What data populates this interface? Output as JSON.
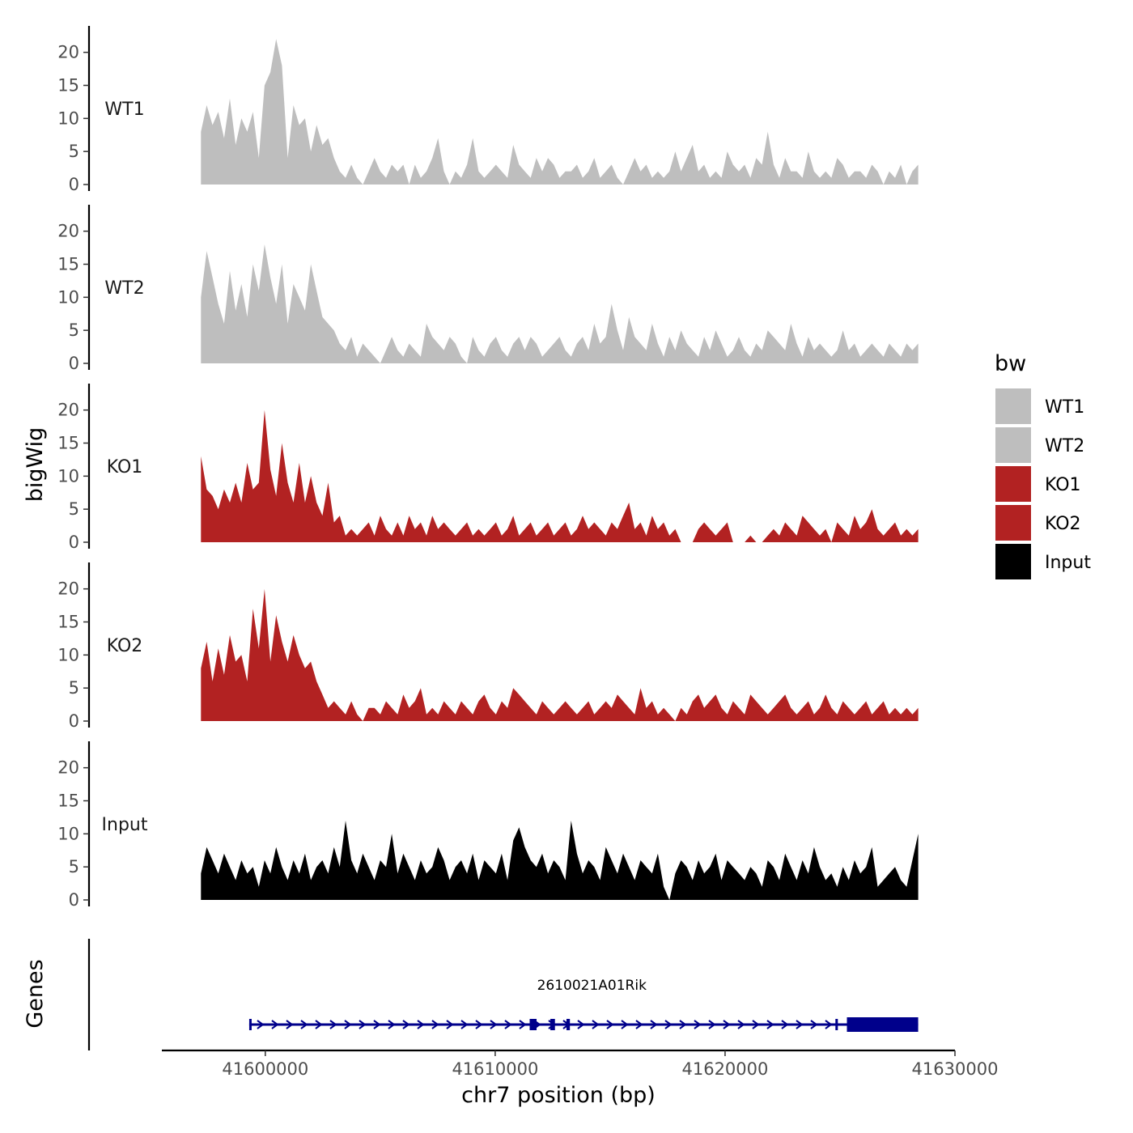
{
  "chart_data": {
    "type": "area",
    "xlabel": "chr7 position (bp)",
    "ylabel": "bigWig",
    "genes_label": "Genes",
    "xlim": [
      41595500,
      41630000
    ],
    "x_ticks": [
      41600000,
      41610000,
      41620000,
      41630000
    ],
    "x_tick_labels": [
      "41600000",
      "41610000",
      "41620000",
      "41630000"
    ],
    "ylim": [
      0,
      24
    ],
    "y_ticks": [
      0,
      5,
      10,
      15,
      20
    ],
    "y_tick_labels": [
      "0",
      "5",
      "10",
      "15",
      "20"
    ],
    "data_range": [
      41597200,
      41628400
    ],
    "legend": {
      "title": "bw",
      "entries": [
        {
          "label": "WT1",
          "color": "#bebebe"
        },
        {
          "label": "WT2",
          "color": "#bebebe"
        },
        {
          "label": "KO1",
          "color": "#b22222"
        },
        {
          "label": "KO2",
          "color": "#b22222"
        },
        {
          "label": "Input",
          "color": "#000000"
        }
      ]
    },
    "series": [
      {
        "name": "WT1",
        "color": "#bebebe",
        "values": [
          8,
          12,
          9,
          11,
          7,
          13,
          6,
          10,
          8,
          11,
          4,
          15,
          17,
          22,
          18,
          4,
          12,
          9,
          10,
          5,
          9,
          6,
          7,
          4,
          2,
          1,
          3,
          1,
          0,
          2,
          4,
          2,
          1,
          3,
          2,
          3,
          0,
          3,
          1,
          2,
          4,
          7,
          2,
          0,
          2,
          1,
          3,
          7,
          2,
          1,
          2,
          3,
          2,
          1,
          6,
          3,
          2,
          1,
          4,
          2,
          4,
          3,
          1,
          2,
          2,
          3,
          1,
          2,
          4,
          1,
          2,
          3,
          1,
          0,
          2,
          4,
          2,
          3,
          1,
          2,
          1,
          2,
          5,
          2,
          4,
          6,
          2,
          3,
          1,
          2,
          1,
          5,
          3,
          2,
          3,
          1,
          4,
          3,
          8,
          3,
          1,
          4,
          2,
          2,
          1,
          5,
          2,
          1,
          2,
          1,
          4,
          3,
          1,
          2,
          2,
          1,
          3,
          2,
          0,
          2,
          1,
          3,
          0,
          2,
          3
        ]
      },
      {
        "name": "WT2",
        "color": "#bebebe",
        "values": [
          10,
          17,
          13,
          9,
          6,
          14,
          8,
          12,
          7,
          15,
          11,
          18,
          13,
          9,
          15,
          6,
          12,
          10,
          8,
          15,
          11,
          7,
          6,
          5,
          3,
          2,
          4,
          1,
          3,
          2,
          1,
          0,
          2,
          4,
          2,
          1,
          3,
          2,
          1,
          6,
          4,
          3,
          2,
          4,
          3,
          1,
          0,
          4,
          2,
          1,
          3,
          4,
          2,
          1,
          3,
          4,
          2,
          4,
          3,
          1,
          2,
          3,
          4,
          2,
          1,
          3,
          4,
          2,
          6,
          3,
          4,
          9,
          5,
          2,
          7,
          4,
          3,
          2,
          6,
          3,
          1,
          4,
          2,
          5,
          3,
          2,
          1,
          4,
          2,
          5,
          3,
          1,
          2,
          4,
          2,
          1,
          3,
          2,
          5,
          4,
          3,
          2,
          6,
          3,
          1,
          4,
          2,
          3,
          2,
          1,
          2,
          5,
          2,
          3,
          1,
          2,
          3,
          2,
          1,
          3,
          2,
          1,
          3,
          2,
          3
        ]
      },
      {
        "name": "KO1",
        "color": "#b22222",
        "values": [
          13,
          8,
          7,
          5,
          8,
          6,
          9,
          6,
          12,
          8,
          9,
          20,
          11,
          7,
          15,
          9,
          6,
          12,
          6,
          10,
          6,
          4,
          9,
          3,
          4,
          1,
          2,
          1,
          2,
          3,
          1,
          4,
          2,
          1,
          3,
          1,
          4,
          2,
          3,
          1,
          4,
          2,
          3,
          2,
          1,
          2,
          3,
          1,
          2,
          1,
          2,
          3,
          1,
          2,
          4,
          1,
          2,
          3,
          1,
          2,
          3,
          1,
          2,
          3,
          1,
          2,
          4,
          2,
          3,
          2,
          1,
          3,
          2,
          4,
          6,
          2,
          3,
          1,
          4,
          2,
          3,
          1,
          2,
          0,
          0,
          0,
          2,
          3,
          2,
          1,
          2,
          3,
          0,
          0,
          0,
          1,
          0,
          0,
          1,
          2,
          1,
          3,
          2,
          1,
          4,
          3,
          2,
          1,
          2,
          0,
          3,
          2,
          1,
          4,
          2,
          3,
          5,
          2,
          1,
          2,
          3,
          1,
          2,
          1,
          2
        ]
      },
      {
        "name": "KO2",
        "color": "#b22222",
        "values": [
          8,
          12,
          6,
          11,
          7,
          13,
          9,
          10,
          6,
          17,
          11,
          20,
          9,
          16,
          12,
          9,
          13,
          10,
          8,
          9,
          6,
          4,
          2,
          3,
          2,
          1,
          3,
          1,
          0,
          2,
          2,
          1,
          3,
          2,
          1,
          4,
          2,
          3,
          5,
          1,
          2,
          1,
          3,
          2,
          1,
          3,
          2,
          1,
          3,
          4,
          2,
          1,
          3,
          2,
          5,
          4,
          3,
          2,
          1,
          3,
          2,
          1,
          2,
          3,
          2,
          1,
          2,
          3,
          1,
          2,
          3,
          2,
          4,
          3,
          2,
          1,
          5,
          2,
          3,
          1,
          2,
          1,
          0,
          2,
          1,
          3,
          4,
          2,
          3,
          4,
          2,
          1,
          3,
          2,
          1,
          4,
          3,
          2,
          1,
          2,
          3,
          4,
          2,
          1,
          2,
          3,
          1,
          2,
          4,
          2,
          1,
          3,
          2,
          1,
          2,
          3,
          1,
          2,
          3,
          1,
          2,
          1,
          2,
          1,
          2
        ]
      },
      {
        "name": "Input",
        "color": "#000000",
        "values": [
          4,
          8,
          6,
          4,
          7,
          5,
          3,
          6,
          4,
          5,
          2,
          6,
          4,
          8,
          5,
          3,
          6,
          4,
          7,
          3,
          5,
          6,
          4,
          8,
          5,
          12,
          6,
          4,
          7,
          5,
          3,
          6,
          5,
          10,
          4,
          7,
          5,
          3,
          6,
          4,
          5,
          8,
          6,
          3,
          5,
          6,
          4,
          7,
          3,
          6,
          5,
          4,
          7,
          3,
          9,
          11,
          8,
          6,
          5,
          7,
          4,
          6,
          5,
          3,
          12,
          7,
          4,
          6,
          5,
          3,
          8,
          6,
          4,
          7,
          5,
          3,
          6,
          5,
          4,
          7,
          2,
          0,
          4,
          6,
          5,
          3,
          6,
          4,
          5,
          7,
          3,
          6,
          5,
          4,
          3,
          5,
          4,
          2,
          6,
          5,
          3,
          7,
          5,
          3,
          6,
          4,
          8,
          5,
          3,
          4,
          2,
          5,
          3,
          6,
          4,
          5,
          8,
          2,
          3,
          4,
          5,
          3,
          2,
          6,
          10
        ]
      }
    ],
    "gene": {
      "name": "2610021A01Rik",
      "strand": "+",
      "start": 41599300,
      "end": 41628400,
      "exons": [
        [
          41599300,
          41599400
        ],
        [
          41611500,
          41611800
        ],
        [
          41612400,
          41612600
        ],
        [
          41613100,
          41613250
        ],
        [
          41624800,
          41624900
        ],
        [
          41625300,
          41628400
        ]
      ]
    }
  }
}
